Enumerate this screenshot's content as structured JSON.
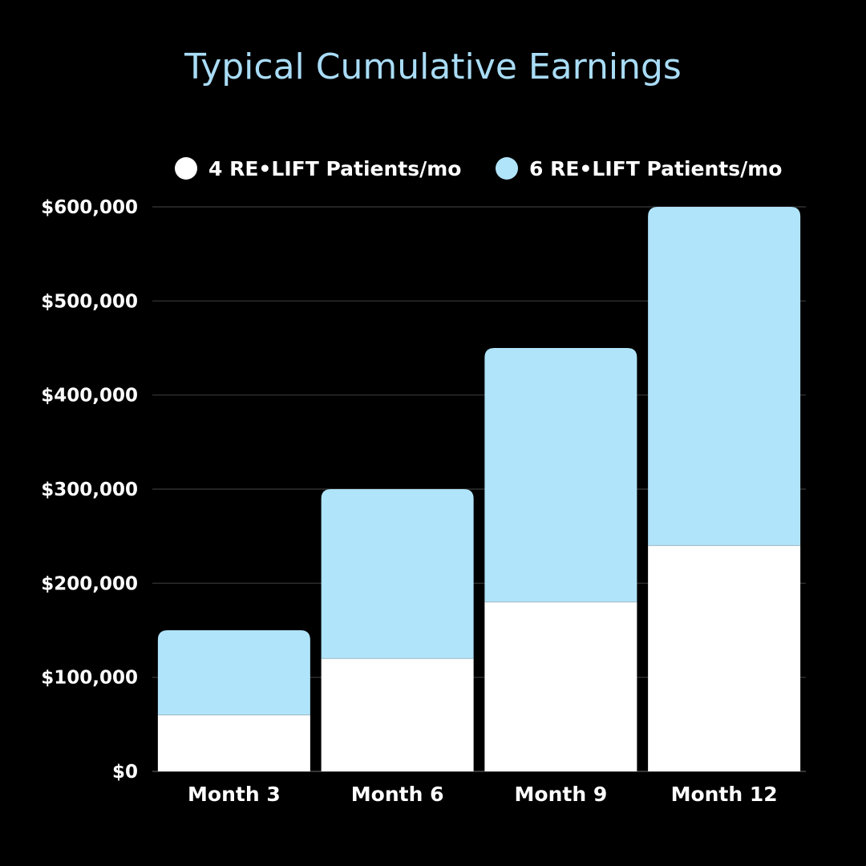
{
  "chart_data": {
    "type": "bar",
    "stacked": true,
    "title": "Typical Cumulative Earnings",
    "xlabel": "",
    "ylabel": "",
    "categories": [
      "Month 3",
      "Month 6",
      "Month 9",
      "Month 12"
    ],
    "series": [
      {
        "name": "4 RE•LIFT Patients/mo",
        "color": "#ffffff",
        "values": [
          60000,
          120000,
          180000,
          240000
        ]
      },
      {
        "name": "6 RE•LIFT Patients/mo",
        "color": "#b0e4fb",
        "values": [
          90000,
          180000,
          270000,
          360000
        ]
      }
    ],
    "totals": [
      150000,
      300000,
      450000,
      600000
    ],
    "ylim": [
      0,
      600000
    ],
    "yticks": [
      0,
      100000,
      200000,
      300000,
      400000,
      500000,
      600000
    ],
    "ytick_labels": [
      "$0",
      "$100,000",
      "$200,000",
      "$300,000",
      "$400,000",
      "$500,000",
      "$600,000"
    ],
    "grid": true,
    "legend": "top-center"
  },
  "colors": {
    "background": "#000000",
    "title": "#a9dcf6",
    "gridline": "#3a3a3a",
    "text": "#ffffff"
  }
}
